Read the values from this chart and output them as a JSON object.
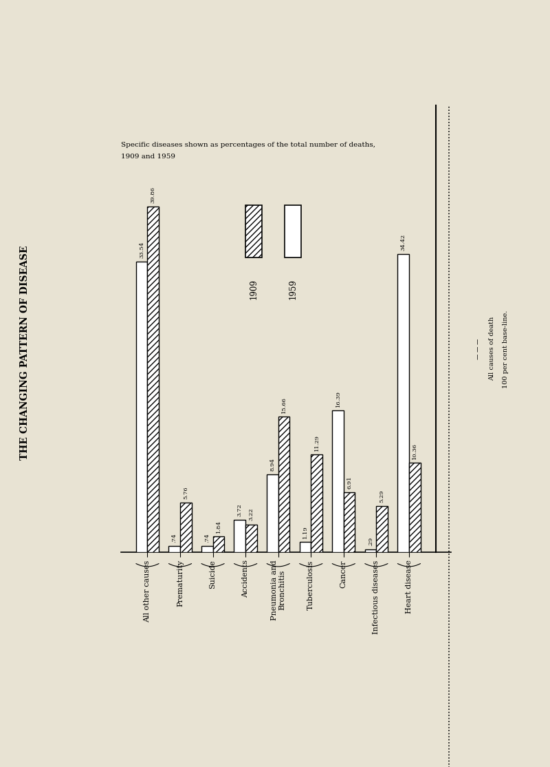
{
  "title": "THE CHANGING PATTERN OF DISEASE",
  "subtitle_line1": "Specific diseases shown as percentages of the total number of deaths,",
  "subtitle_line2": "1909 and 1959",
  "categories": [
    "All other causes",
    "Prematurity",
    "Suicide",
    "Accidents",
    "Pneumonia and\nBronchitis",
    "Tuberculosis",
    "Cancer",
    "Infectious diseases",
    "Heart disease"
  ],
  "values_1909": [
    33.54,
    0.74,
    0.74,
    3.72,
    8.94,
    1.19,
    16.39,
    0.29,
    34.42
  ],
  "values_1959": [
    39.86,
    5.76,
    1.84,
    3.22,
    15.66,
    11.29,
    6.91,
    5.29,
    10.36
  ],
  "labels_1909": [
    "33.54",
    ".74",
    ".74",
    "3.72",
    "8.94",
    "1.19",
    "16.39",
    ".29",
    "34.42"
  ],
  "labels_1959": [
    "39.86",
    "5.76",
    "1.84",
    "3.22",
    "15.66",
    "11.29",
    "6.91",
    "5.29",
    "10.36"
  ],
  "background_color": "#ddd8c4",
  "page_color": "#e8e3d3",
  "bar_width": 0.35,
  "baseline_label_line1": "All causes of death",
  "baseline_label_line2": "100 per cent base-line.",
  "ylim": [
    0,
    46
  ],
  "legend_1909_label": "1909",
  "legend_1959_label": "1959"
}
